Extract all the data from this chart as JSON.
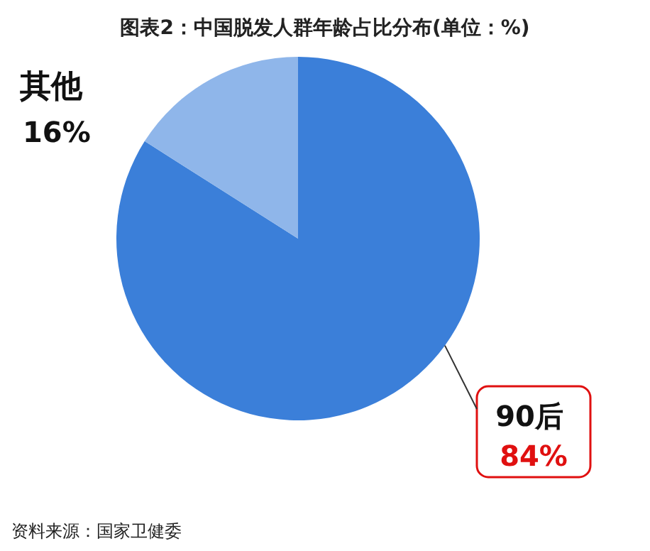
{
  "chart_data": {
    "type": "pie",
    "title": "图表2：中国脱发人群年龄占比分布(单位：%)",
    "categories": [
      "90后",
      "其他"
    ],
    "values": [
      84,
      16
    ],
    "value_labels": [
      "84%",
      "16%"
    ],
    "colors": [
      "#3b7fd9",
      "#8fb6ea"
    ],
    "annotations": [
      "资料来源：国家卫健委"
    ]
  }
}
